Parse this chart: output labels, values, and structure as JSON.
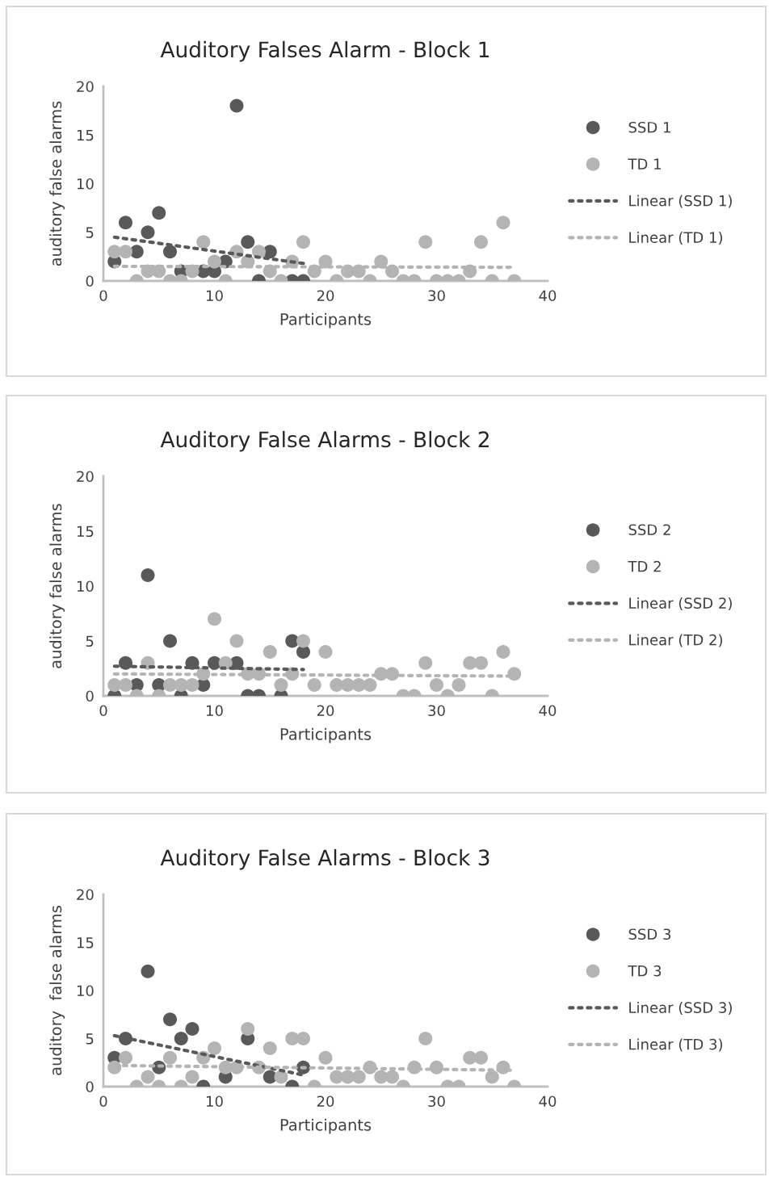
{
  "chart_data": [
    {
      "type": "scatter",
      "title": "Auditory Falses Alarm - Block 1",
      "xlabel": "Participants",
      "ylabel": "auditory false alarms",
      "xlim": [
        0,
        40
      ],
      "xticks": [
        0,
        10,
        20,
        30,
        40
      ],
      "ylim": [
        0,
        20
      ],
      "yticks": [
        0,
        5,
        10,
        15,
        20
      ],
      "grid": false,
      "legend": "right",
      "marker": "circle",
      "series": [
        {
          "name": "SSD 1",
          "color": "#595959",
          "x": [
            1,
            2,
            3,
            4,
            5,
            6,
            7,
            9,
            10,
            11,
            12,
            13,
            14,
            15,
            17,
            18
          ],
          "values": [
            2,
            6,
            3,
            5,
            7,
            3,
            1,
            1,
            1,
            2,
            18,
            4,
            0,
            3,
            0,
            0
          ]
        },
        {
          "name": "TD 1",
          "color": "#b4b4b4",
          "x": [
            1,
            2,
            3,
            4,
            5,
            6,
            7,
            8,
            9,
            10,
            11,
            12,
            13,
            14,
            15,
            16,
            17,
            18,
            19,
            20,
            21,
            22,
            23,
            24,
            25,
            26,
            27,
            28,
            29,
            30,
            31,
            32,
            33,
            34,
            35,
            36,
            37
          ],
          "values": [
            3,
            3,
            0,
            1,
            1,
            0,
            0,
            1,
            4,
            2,
            0,
            3,
            2,
            3,
            1,
            0,
            2,
            4,
            1,
            2,
            0,
            1,
            1,
            0,
            2,
            1,
            0,
            0,
            4,
            0,
            0,
            0,
            1,
            4,
            0,
            6,
            0
          ]
        },
        {
          "name": "Linear (SSD 1)",
          "type": "line",
          "marker": "none",
          "line_style": "dotted",
          "color": "#595959",
          "x": [
            1,
            18
          ],
          "values": [
            4.5,
            1.8
          ]
        },
        {
          "name": "Linear (TD 1)",
          "type": "line",
          "marker": "none",
          "line_style": "dotted",
          "color": "#b4b4b4",
          "x": [
            1,
            37
          ],
          "values": [
            1.5,
            1.4
          ]
        }
      ]
    },
    {
      "type": "scatter",
      "title": "Auditory False Alarms - Block 2",
      "xlabel": "Participants",
      "ylabel": "auditory false alarms",
      "xlim": [
        0,
        40
      ],
      "xticks": [
        0,
        10,
        20,
        30,
        40
      ],
      "ylim": [
        0,
        20
      ],
      "yticks": [
        0,
        5,
        10,
        15,
        20
      ],
      "grid": false,
      "legend": "right",
      "marker": "circle",
      "series": [
        {
          "name": "SSD 2",
          "color": "#595959",
          "x": [
            1,
            2,
            3,
            4,
            5,
            6,
            7,
            8,
            9,
            10,
            12,
            13,
            14,
            16,
            17,
            18
          ],
          "values": [
            0,
            3,
            1,
            11,
            1,
            5,
            0,
            3,
            1,
            3,
            3,
            0,
            0,
            0,
            5,
            4
          ]
        },
        {
          "name": "TD 2",
          "color": "#b4b4b4",
          "x": [
            1,
            2,
            3,
            4,
            5,
            6,
            7,
            8,
            9,
            10,
            11,
            12,
            13,
            14,
            15,
            16,
            17,
            18,
            19,
            20,
            21,
            22,
            23,
            24,
            25,
            26,
            27,
            28,
            29,
            30,
            31,
            32,
            33,
            34,
            35,
            36,
            37
          ],
          "values": [
            1,
            1,
            0,
            3,
            0,
            1,
            1,
            1,
            2,
            7,
            3,
            5,
            2,
            2,
            4,
            1,
            2,
            5,
            1,
            4,
            1,
            1,
            1,
            1,
            2,
            2,
            0,
            0,
            3,
            1,
            0,
            1,
            3,
            3,
            0,
            4,
            2
          ]
        },
        {
          "name": "Linear (SSD 2)",
          "type": "line",
          "marker": "none",
          "line_style": "dotted",
          "color": "#595959",
          "x": [
            1,
            18
          ],
          "values": [
            2.7,
            2.4
          ]
        },
        {
          "name": "Linear (TD 2)",
          "type": "line",
          "marker": "none",
          "line_style": "dotted",
          "color": "#b4b4b4",
          "x": [
            1,
            37
          ],
          "values": [
            2.0,
            1.8
          ]
        }
      ]
    },
    {
      "type": "scatter",
      "title": "Auditory False Alarms - Block 3",
      "xlabel": "Participants",
      "ylabel": "auditory  false alarms",
      "xlim": [
        0,
        40
      ],
      "xticks": [
        0,
        10,
        20,
        30,
        40
      ],
      "ylim": [
        0,
        20
      ],
      "yticks": [
        0,
        5,
        10,
        15,
        20
      ],
      "grid": false,
      "legend": "right",
      "marker": "circle",
      "series": [
        {
          "name": "SSD 3",
          "color": "#595959",
          "x": [
            1,
            2,
            4,
            5,
            6,
            7,
            8,
            9,
            11,
            13,
            15,
            17,
            18
          ],
          "values": [
            3,
            5,
            12,
            2,
            7,
            5,
            6,
            0,
            1,
            5,
            1,
            0,
            2
          ]
        },
        {
          "name": "TD 3",
          "color": "#b4b4b4",
          "x": [
            1,
            2,
            3,
            4,
            5,
            6,
            7,
            8,
            9,
            10,
            11,
            12,
            13,
            14,
            15,
            16,
            17,
            18,
            19,
            20,
            21,
            22,
            23,
            24,
            25,
            26,
            27,
            28,
            29,
            30,
            31,
            32,
            33,
            34,
            35,
            36,
            37
          ],
          "values": [
            2,
            3,
            0,
            1,
            0,
            3,
            0,
            1,
            3,
            4,
            2,
            2,
            6,
            2,
            4,
            1,
            5,
            5,
            0,
            3,
            1,
            1,
            1,
            2,
            1,
            1,
            0,
            2,
            5,
            2,
            0,
            0,
            3,
            3,
            1,
            2,
            0
          ]
        },
        {
          "name": "Linear (SSD 3)",
          "type": "line",
          "marker": "none",
          "line_style": "dotted",
          "color": "#595959",
          "x": [
            1,
            18
          ],
          "values": [
            5.3,
            1.2
          ]
        },
        {
          "name": "Linear (TD 3)",
          "type": "line",
          "marker": "none",
          "line_style": "dotted",
          "color": "#b4b4b4",
          "x": [
            1,
            37
          ],
          "values": [
            2.2,
            1.7
          ]
        }
      ]
    }
  ]
}
